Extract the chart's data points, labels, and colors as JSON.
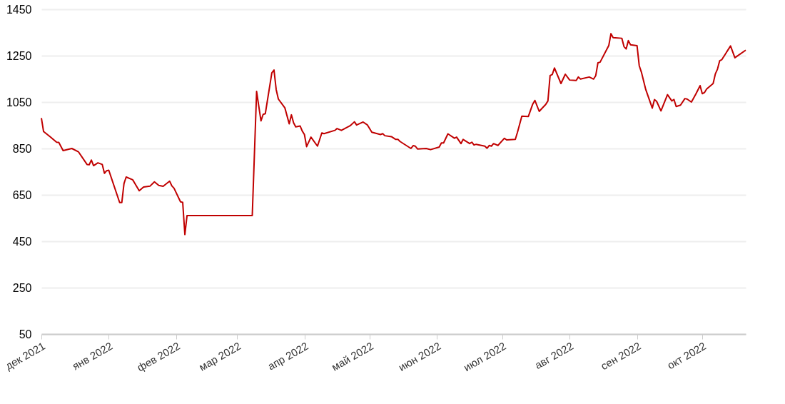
{
  "chart_data": {
    "type": "line",
    "grid": "y",
    "xlim": [
      "2021-12-01",
      "2022-10-21"
    ],
    "xticks": [
      {
        "value": "2021-12-01",
        "label": "дек 2021"
      },
      {
        "value": "2022-01-01",
        "label": "янв 2022"
      },
      {
        "value": "2022-02-01",
        "label": "фев 2022"
      },
      {
        "value": "2022-03-01",
        "label": "мар 2022"
      },
      {
        "value": "2022-04-01",
        "label": "апр 2022"
      },
      {
        "value": "2022-05-01",
        "label": "май 2022"
      },
      {
        "value": "2022-06-01",
        "label": "июн 2022"
      },
      {
        "value": "2022-07-01",
        "label": "июл 2022"
      },
      {
        "value": "2022-08-01",
        "label": "авг 2022"
      },
      {
        "value": "2022-09-01",
        "label": "сен 2022"
      },
      {
        "value": "2022-10-01",
        "label": "окт 2022"
      }
    ],
    "ylim": [
      50,
      1450
    ],
    "yticks": [
      50,
      250,
      450,
      650,
      850,
      1050,
      1250,
      1450
    ],
    "series": [
      {
        "color": "#c00000",
        "line_style": "solid",
        "marker": "none",
        "x": [
          "2021-12-01",
          "2021-12-02",
          "2021-12-05",
          "2021-12-08",
          "2021-12-09",
          "2021-12-11",
          "2021-12-15",
          "2021-12-18",
          "2021-12-22",
          "2021-12-23",
          "2021-12-24",
          "2021-12-25",
          "2021-12-27",
          "2021-12-29",
          "2021-12-30",
          "2021-12-31",
          "2022-01-01",
          "2022-01-06",
          "2022-01-07",
          "2022-01-08",
          "2022-01-09",
          "2022-01-12",
          "2022-01-15",
          "2022-01-17",
          "2022-01-20",
          "2022-01-22",
          "2022-01-24",
          "2022-01-26",
          "2022-01-29",
          "2022-01-30",
          "2022-01-31",
          "2022-02-03",
          "2022-02-04",
          "2022-02-05",
          "2022-02-06",
          "2022-03-08",
          "2022-03-10",
          "2022-03-12",
          "2022-03-13",
          "2022-03-14",
          "2022-03-17",
          "2022-03-18",
          "2022-03-19",
          "2022-03-20",
          "2022-03-23",
          "2022-03-25",
          "2022-03-26",
          "2022-03-27",
          "2022-03-28",
          "2022-03-30",
          "2022-03-31",
          "2022-04-01",
          "2022-04-02",
          "2022-04-04",
          "2022-04-07",
          "2022-04-09",
          "2022-04-10",
          "2022-04-15",
          "2022-04-16",
          "2022-04-18",
          "2022-04-22",
          "2022-04-24",
          "2022-04-25",
          "2022-04-28",
          "2022-04-30",
          "2022-05-02",
          "2022-05-06",
          "2022-05-07",
          "2022-05-08",
          "2022-05-11",
          "2022-05-13",
          "2022-05-14",
          "2022-05-15",
          "2022-05-20",
          "2022-05-21",
          "2022-05-22",
          "2022-05-23",
          "2022-05-27",
          "2022-05-29",
          "2022-06-02",
          "2022-06-03",
          "2022-06-04",
          "2022-06-06",
          "2022-06-09",
          "2022-06-10",
          "2022-06-12",
          "2022-06-13",
          "2022-06-16",
          "2022-06-17",
          "2022-06-18",
          "2022-06-19",
          "2022-06-23",
          "2022-06-24",
          "2022-06-25",
          "2022-06-26",
          "2022-06-27",
          "2022-06-29",
          "2022-07-02",
          "2022-07-03",
          "2022-07-07",
          "2022-07-08",
          "2022-07-10",
          "2022-07-13",
          "2022-07-15",
          "2022-07-16",
          "2022-07-18",
          "2022-07-21",
          "2022-07-22",
          "2022-07-23",
          "2022-07-24",
          "2022-07-25",
          "2022-07-28",
          "2022-07-30",
          "2022-08-01",
          "2022-08-04",
          "2022-08-05",
          "2022-08-06",
          "2022-08-10",
          "2022-08-12",
          "2022-08-13",
          "2022-08-14",
          "2022-08-15",
          "2022-08-19",
          "2022-08-20",
          "2022-08-21",
          "2022-08-25",
          "2022-08-26",
          "2022-08-27",
          "2022-08-28",
          "2022-08-29",
          "2022-09-01",
          "2022-09-02",
          "2022-09-03",
          "2022-09-05",
          "2022-09-08",
          "2022-09-09",
          "2022-09-10",
          "2022-09-12",
          "2022-09-15",
          "2022-09-17",
          "2022-09-18",
          "2022-09-19",
          "2022-09-21",
          "2022-09-23",
          "2022-09-24",
          "2022-09-26",
          "2022-09-28",
          "2022-09-30",
          "2022-10-01",
          "2022-10-02",
          "2022-10-03",
          "2022-10-06",
          "2022-10-07",
          "2022-10-08",
          "2022-10-09",
          "2022-10-10",
          "2022-10-14",
          "2022-10-16",
          "2022-10-21"
        ],
        "values": [
          981,
          923,
          901,
          877,
          876,
          841,
          850,
          836,
          781,
          780,
          800,
          776,
          788,
          781,
          743,
          754,
          756,
          617,
          617,
          699,
          727,
          715,
          668,
          684,
          688,
          706,
          691,
          687,
          709,
          689,
          679,
          620,
          618,
          479,
          561,
          561,
          1096,
          969,
          997,
          1000,
          1176,
          1188,
          1104,
          1063,
          1025,
          956,
          995,
          961,
          943,
          947,
          925,
          910,
          858,
          899,
          860,
          917,
          914,
          928,
          936,
          928,
          948,
          965,
          951,
          964,
          951,
          920,
          910,
          914,
          905,
          901,
          889,
          889,
          880,
          850,
          862,
          860,
          848,
          850,
          845,
          856,
          874,
          874,
          913,
          894,
          899,
          871,
          889,
          871,
          877,
          865,
          868,
          860,
          851,
          863,
          860,
          871,
          863,
          894,
          887,
          889,
          920,
          989,
          988,
          1041,
          1057,
          1010,
          1040,
          1055,
          1164,
          1169,
          1197,
          1130,
          1170,
          1145,
          1143,
          1158,
          1149,
          1158,
          1149,
          1164,
          1219,
          1222,
          1294,
          1345,
          1328,
          1325,
          1289,
          1279,
          1315,
          1297,
          1293,
          1207,
          1179,
          1104,
          1024,
          1061,
          1053,
          1012,
          1082,
          1055,
          1061,
          1031,
          1037,
          1065,
          1063,
          1050,
          1084,
          1121,
          1086,
          1091,
          1106,
          1130,
          1171,
          1192,
          1228,
          1233,
          1292,
          1241,
          1274
        ]
      }
    ]
  }
}
